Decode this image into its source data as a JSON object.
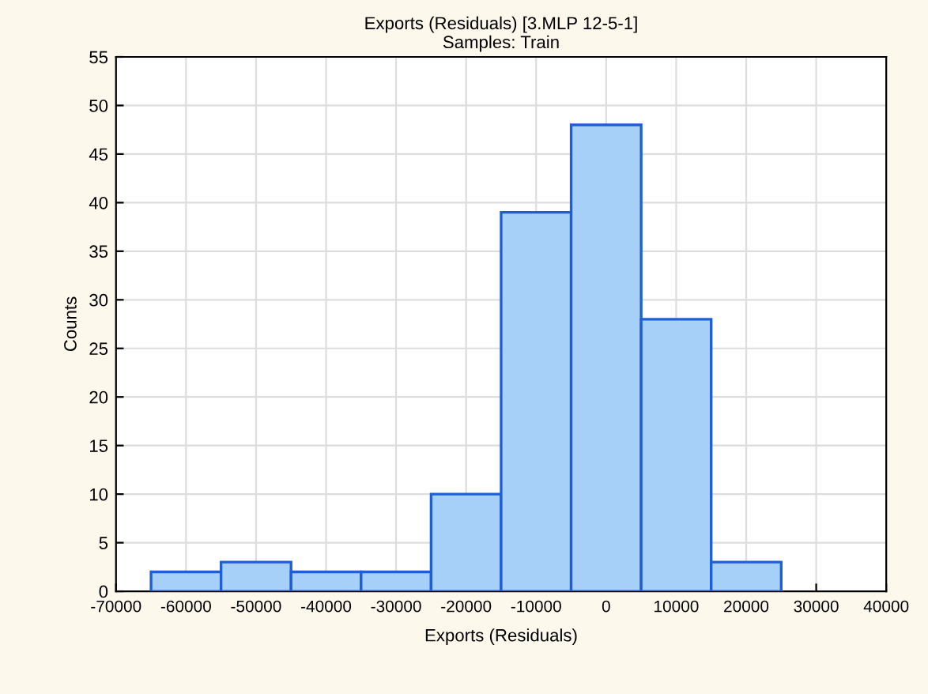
{
  "chart_data": {
    "type": "histogram",
    "title": "Exports (Residuals) [3.MLP 12-5-1]",
    "subtitle": "Samples: Train",
    "xlabel": "Exports (Residuals)",
    "ylabel": "Counts",
    "bins": [
      -65000,
      -55000,
      -45000,
      -35000,
      -25000,
      -15000,
      -5000,
      5000,
      15000,
      25000
    ],
    "values": [
      2,
      3,
      2,
      2,
      10,
      39,
      48,
      28,
      3
    ],
    "color": "#a6d0f8",
    "xlim": [
      -70000,
      40000
    ],
    "xticks": [
      -70000,
      -60000,
      -50000,
      -40000,
      -30000,
      -20000,
      -10000,
      0,
      10000,
      20000,
      30000,
      40000
    ],
    "ylim": [
      0,
      55
    ],
    "yticks": [
      0,
      5,
      10,
      15,
      20,
      25,
      30,
      35,
      40,
      45,
      50,
      55
    ],
    "grid": true
  }
}
